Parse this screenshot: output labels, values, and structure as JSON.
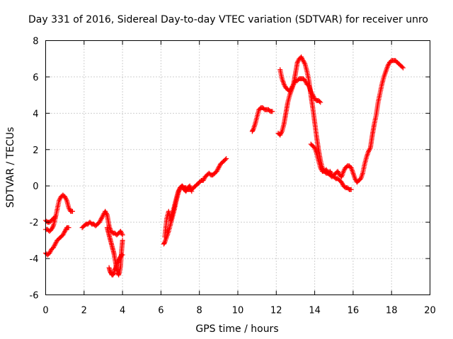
{
  "chart_data": {
    "type": "scatter",
    "title": "Day 331 of 2016, Sidereal Day-to-day VTEC variation (SDTVAR) for receiver unro",
    "xlabel": "GPS time / hours",
    "ylabel": "SDTVAR / TECUs",
    "xlim": [
      0,
      20
    ],
    "ylim": [
      -6,
      8
    ],
    "x_ticks": [
      "0",
      "2",
      "4",
      "6",
      "8",
      "10",
      "12",
      "14",
      "16",
      "18",
      "20"
    ],
    "y_ticks": [
      "-6",
      "-4",
      "-2",
      "0",
      "2",
      "4",
      "6",
      "8"
    ],
    "grid": true,
    "marker": "+",
    "series_color": "#ff0000",
    "segments": [
      {
        "x": [
          0.0,
          0.1,
          0.2,
          0.3,
          0.4,
          0.5
        ],
        "y": [
          -1.9,
          -2.0,
          -2.0,
          -1.9,
          -1.8,
          -1.7
        ]
      },
      {
        "x": [
          0.0,
          0.1,
          0.2,
          0.3,
          0.4,
          0.5,
          0.6,
          0.7,
          0.8,
          0.9,
          1.0,
          1.1,
          1.2,
          1.3,
          1.4
        ],
        "y": [
          -2.4,
          -2.4,
          -2.5,
          -2.4,
          -2.2,
          -1.8,
          -1.3,
          -0.8,
          -0.6,
          -0.5,
          -0.6,
          -0.8,
          -1.2,
          -1.4,
          -1.4
        ]
      },
      {
        "x": [
          0.0,
          0.1,
          0.2,
          0.3,
          0.4,
          0.5,
          0.6,
          0.7,
          0.8,
          0.9,
          1.0,
          1.1,
          1.2
        ],
        "y": [
          -3.7,
          -3.8,
          -3.7,
          -3.5,
          -3.4,
          -3.2,
          -3.0,
          -2.9,
          -2.8,
          -2.7,
          -2.5,
          -2.3,
          -2.3
        ]
      },
      {
        "x": [
          1.9,
          2.0,
          2.1,
          2.2,
          2.3,
          2.4,
          2.5,
          2.6,
          2.7,
          2.8,
          2.9,
          3.0,
          3.1,
          3.2,
          3.3,
          3.4,
          3.5,
          3.6,
          3.7,
          3.8,
          3.9,
          4.0
        ],
        "y": [
          -2.3,
          -2.2,
          -2.1,
          -2.1,
          -2.0,
          -2.1,
          -2.1,
          -2.2,
          -2.1,
          -2.0,
          -1.8,
          -1.6,
          -1.4,
          -1.6,
          -2.2,
          -2.5,
          -2.6,
          -2.6,
          -2.7,
          -2.6,
          -2.5,
          -2.7
        ]
      },
      {
        "x": [
          3.2,
          3.25,
          3.3,
          3.35,
          3.4,
          3.45,
          3.5,
          3.55,
          3.6,
          3.65,
          3.7,
          3.75,
          3.8,
          3.85,
          3.9,
          3.95,
          4.0
        ],
        "y": [
          -2.3,
          -2.5,
          -2.7,
          -2.9,
          -3.1,
          -3.3,
          -3.5,
          -3.7,
          -4.0,
          -4.3,
          -4.6,
          -4.8,
          -4.9,
          -4.7,
          -4.4,
          -3.6,
          -3.0
        ]
      },
      {
        "x": [
          3.3,
          3.35,
          3.4,
          3.45,
          3.5,
          3.55,
          3.6,
          3.65,
          3.7,
          3.75,
          3.8,
          3.85,
          3.9,
          3.95,
          4.0
        ],
        "y": [
          -4.5,
          -4.7,
          -4.8,
          -4.9,
          -4.9,
          -4.8,
          -4.6,
          -4.5,
          -4.3,
          -4.2,
          -4.1,
          -4.0,
          -3.9,
          -3.8,
          -3.8
        ]
      },
      {
        "x": [
          6.15,
          6.2,
          6.3,
          6.4,
          6.5,
          6.6,
          6.7,
          6.8,
          6.9,
          7.0,
          7.1,
          7.2,
          7.3,
          7.4,
          7.5,
          7.6,
          7.7,
          7.8,
          7.9,
          8.0,
          8.1,
          8.2,
          8.3,
          8.4,
          8.5,
          8.6,
          8.7,
          8.8,
          8.9,
          9.0,
          9.1,
          9.2,
          9.3,
          9.4
        ],
        "y": [
          -3.2,
          -3.1,
          -2.8,
          -2.5,
          -2.1,
          -1.7,
          -1.3,
          -0.8,
          -0.4,
          -0.1,
          0.0,
          -0.1,
          -0.1,
          -0.2,
          -0.2,
          -0.2,
          -0.1,
          0.0,
          0.1,
          0.2,
          0.3,
          0.3,
          0.5,
          0.6,
          0.7,
          0.6,
          0.6,
          0.7,
          0.8,
          1.0,
          1.2,
          1.3,
          1.4,
          1.5
        ]
      },
      {
        "x": [
          6.2,
          6.3,
          6.4,
          6.5,
          6.6,
          6.7,
          6.8,
          6.9,
          7.0,
          7.1,
          7.2,
          7.3,
          7.4,
          7.5,
          7.6
        ],
        "y": [
          -2.8,
          -1.8,
          -1.4,
          -1.9,
          -1.5,
          -1.1,
          -0.7,
          -0.3,
          -0.1,
          0.0,
          -0.2,
          -0.3,
          -0.1,
          0.0,
          -0.3
        ]
      },
      {
        "x": [
          10.75,
          10.8,
          10.9,
          11.0,
          11.1,
          11.2,
          11.3,
          11.4,
          11.5,
          11.6,
          11.7,
          11.8
        ],
        "y": [
          3.0,
          3.1,
          3.4,
          3.8,
          4.2,
          4.3,
          4.3,
          4.2,
          4.2,
          4.2,
          4.1,
          4.1
        ]
      },
      {
        "x": [
          12.1,
          12.2,
          12.3,
          12.4,
          12.5,
          12.6,
          12.7,
          12.8,
          12.9,
          13.0,
          13.1,
          13.2,
          13.3,
          13.4,
          13.5,
          13.6,
          13.7,
          13.8,
          13.9,
          14.0,
          14.1,
          14.2,
          14.3,
          14.4,
          14.5,
          14.6,
          14.7,
          14.8,
          14.9,
          15.0,
          15.1,
          15.2,
          15.3,
          15.4,
          15.5,
          15.6,
          15.7,
          15.8,
          15.9
        ],
        "y": [
          2.9,
          2.8,
          3.0,
          3.4,
          4.0,
          4.6,
          5.0,
          5.3,
          5.6,
          6.2,
          6.8,
          7.0,
          7.1,
          6.9,
          6.7,
          6.3,
          5.8,
          5.0,
          4.3,
          3.5,
          2.7,
          2.0,
          1.4,
          1.0,
          0.8,
          0.7,
          0.7,
          0.8,
          0.6,
          0.5,
          0.4,
          0.4,
          0.3,
          0.2,
          0.0,
          -0.1,
          -0.1,
          -0.2,
          -0.2
        ]
      },
      {
        "x": [
          12.2,
          12.3,
          12.4,
          12.5,
          12.6,
          12.7,
          12.8,
          12.9,
          13.0,
          13.1,
          13.2,
          13.3,
          13.4,
          13.5,
          13.6,
          13.7,
          13.8,
          13.9,
          14.0,
          14.1,
          14.2,
          14.3
        ],
        "y": [
          6.4,
          5.9,
          5.6,
          5.4,
          5.3,
          5.2,
          5.4,
          5.6,
          5.8,
          5.8,
          5.9,
          5.9,
          5.9,
          5.8,
          5.6,
          5.5,
          5.2,
          5.0,
          4.8,
          4.7,
          4.7,
          4.6
        ]
      },
      {
        "x": [
          13.8,
          13.9,
          14.0,
          14.1,
          14.2,
          14.3,
          14.4,
          14.5,
          14.6,
          14.7,
          14.8,
          14.9,
          15.0,
          15.1,
          15.2,
          15.3,
          15.4,
          15.5,
          15.6,
          15.7,
          15.8,
          15.9,
          16.0,
          16.1,
          16.2,
          16.3,
          16.4,
          16.5,
          16.6,
          16.7,
          16.8,
          16.9,
          17.0,
          17.1,
          17.2,
          17.3,
          17.4,
          17.5,
          17.6,
          17.7,
          17.8,
          17.9,
          18.0,
          18.1,
          18.2,
          18.3,
          18.4,
          18.5,
          18.6
        ],
        "y": [
          2.3,
          2.2,
          2.1,
          1.8,
          1.4,
          1.0,
          0.8,
          0.8,
          0.9,
          0.7,
          0.6,
          0.5,
          0.6,
          0.7,
          0.8,
          0.6,
          0.5,
          0.8,
          1.0,
          1.1,
          1.1,
          1.0,
          0.7,
          0.4,
          0.2,
          0.3,
          0.4,
          0.7,
          1.2,
          1.6,
          1.9,
          2.1,
          2.8,
          3.4,
          3.9,
          4.6,
          5.1,
          5.6,
          6.0,
          6.3,
          6.6,
          6.8,
          6.9,
          6.9,
          6.9,
          6.8,
          6.7,
          6.6,
          6.5
        ]
      }
    ]
  }
}
